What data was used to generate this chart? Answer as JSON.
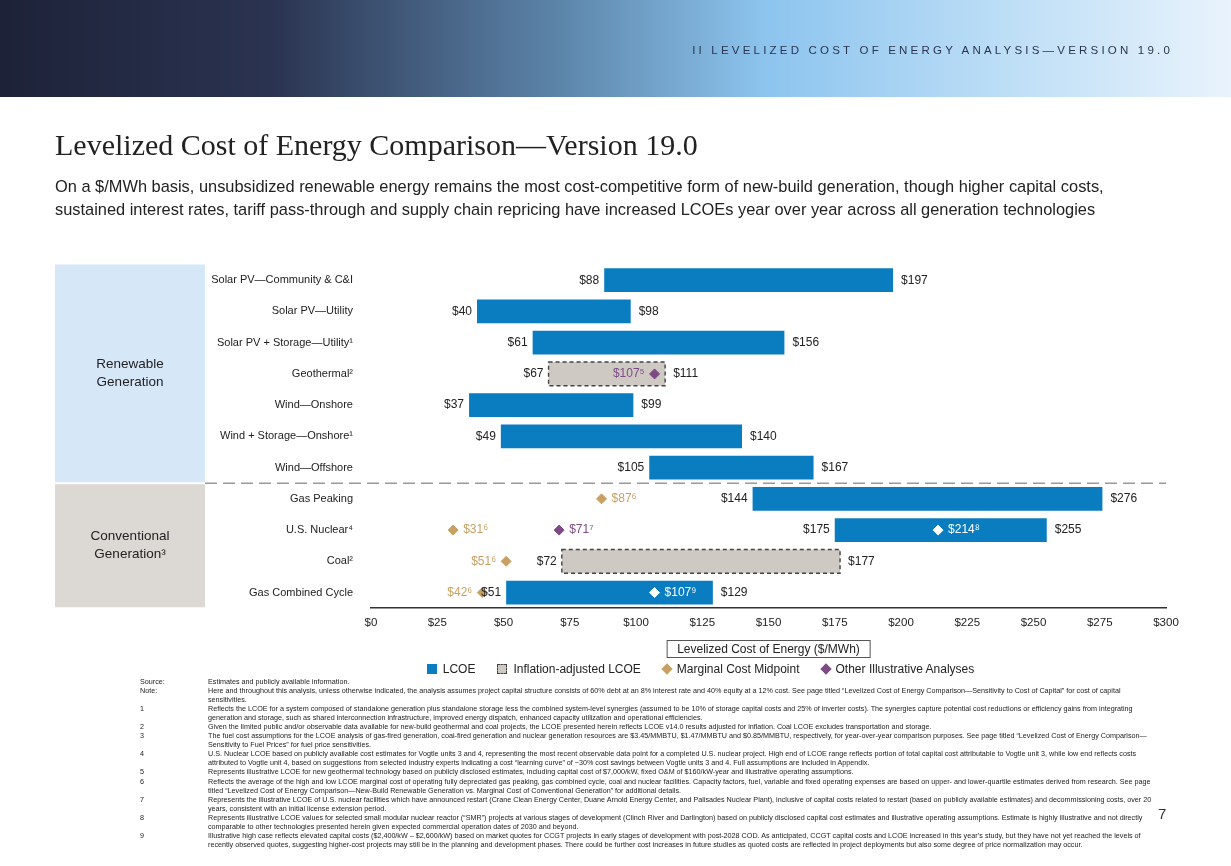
{
  "chart_data": {
    "type": "bar",
    "orientation": "horizontal",
    "title": "Levelized Cost of Energy Comparison—Version 19.0",
    "subtitle": "On a $/MWh basis, unsubsidized renewable energy remains the most cost-competitive form of new-build generation, though higher capital costs, sustained interest rates, tariff pass-through and supply chain repricing have increased LCOEs year over year across all generation technologies",
    "xlabel": "Levelized Cost of Energy ($/MWh)",
    "categories": [
      "Solar PV—Community & C&I",
      "Solar PV—Utility",
      "Solar PV + Storage—Utility¹",
      "Geothermal²",
      "Wind—Onshore",
      "Wind + Storage—Onshore¹",
      "Wind—Offshore",
      "Gas Peaking",
      "U.S. Nuclear⁴",
      "Coal²",
      "Gas Combined Cycle"
    ],
    "series": [
      {
        "name": "LCOE",
        "type": "bar",
        "color": "#0a7dc1",
        "base": [
          88,
          40,
          61,
          null,
          37,
          49,
          105,
          144,
          175,
          null,
          51
        ],
        "values": [
          109,
          58,
          95,
          null,
          62,
          91,
          62,
          132,
          80,
          null,
          78
        ],
        "value_labels": [
          [
            "$88",
            "$197"
          ],
          [
            "$40",
            "$98"
          ],
          [
            "$61",
            "$156"
          ],
          null,
          [
            "$37",
            "$99"
          ],
          [
            "$49",
            "$140"
          ],
          [
            "$105",
            "$167"
          ],
          [
            "$144",
            "$276"
          ],
          [
            "$175",
            "$255"
          ],
          null,
          [
            "$51",
            "$129"
          ]
        ]
      },
      {
        "name": "Inflation-adjusted LCOE",
        "type": "bar",
        "color": "#cfc9c4",
        "line_style": "dashed",
        "base": [
          null,
          null,
          null,
          67,
          null,
          null,
          null,
          null,
          null,
          72,
          null
        ],
        "values": [
          null,
          null,
          null,
          44,
          null,
          null,
          null,
          null,
          null,
          105,
          null
        ],
        "value_labels": [
          null,
          null,
          null,
          [
            "$67",
            "$111"
          ],
          null,
          null,
          null,
          null,
          null,
          [
            "$72",
            "$177"
          ],
          null
        ]
      },
      {
        "name": "Marginal Cost Midpoint",
        "type": "scatter",
        "marker": "diamond",
        "color": "#c9a063",
        "values": [
          null,
          null,
          null,
          null,
          null,
          null,
          null,
          87,
          31,
          51,
          42
        ],
        "value_labels": [
          null,
          null,
          null,
          null,
          null,
          null,
          null,
          "$87⁶",
          "$31⁶",
          "$51⁶",
          "$42⁶"
        ]
      },
      {
        "name": "Other Illustrative Analyses",
        "type": "scatter",
        "marker": "diamond",
        "color": "#7d4a85",
        "x": [
          "Geothermal²",
          "U.S. Nuclear⁴",
          "U.S. Nuclear⁴",
          "Gas Combined Cycle"
        ],
        "values": [
          107,
          71,
          214,
          107
        ],
        "colors": [
          "#7d4a85",
          "#7d4a85",
          "#ffffff",
          "#ffffff"
        ],
        "value_labels": [
          "$107⁵",
          "$71⁷",
          "$214⁸",
          "$107⁹"
        ]
      }
    ],
    "xlim": [
      0,
      300
    ],
    "xticks": [
      {
        "value": 0,
        "label": "$0"
      },
      {
        "value": 25,
        "label": "$25"
      },
      {
        "value": 50,
        "label": "$50"
      },
      {
        "value": 75,
        "label": "$75"
      },
      {
        "value": 100,
        "label": "$100"
      },
      {
        "value": 125,
        "label": "$125"
      },
      {
        "value": 150,
        "label": "$150"
      },
      {
        "value": 175,
        "label": "$175"
      },
      {
        "value": 200,
        "label": "$200"
      },
      {
        "value": 225,
        "label": "$225"
      },
      {
        "value": 250,
        "label": "$250"
      },
      {
        "value": 275,
        "label": "$275"
      },
      {
        "value": 300,
        "label": "$300"
      }
    ],
    "legend": "bottom",
    "annotations": [
      "II   LEVELIZED COST OF ENERGY ANALYSIS—VERSION 19.0",
      "7",
      "Renewable Generation",
      "Conventional Generation³",
      "Source:\tEstimates and publicly available information.",
      "Note:\tHere and throughout this analysis, unless otherwise indicated, the analysis assumes project capital structure consists of 60% debt at an 8% interest rate and 40% equity at a 12% cost. See page titled “Levelized Cost of Energy Comparison—Sensitivity to Cost of Capital” for cost of capital sensitivities.",
      "1\tReflects the LCOE for a system composed of standalone generation plus standalone storage less the combined system-level synergies (assumed to be 10% of storage capital costs and 25% of inverter costs). The synergies capture potential cost reductions or efficiency gains from integrating generation and storage, such as shared interconnection infrastructure, improved energy dispatch, enhanced capacity utilization and operational efficiencies.",
      "2\tGiven the limited public and/or observable data available for new-build geothermal and coal projects, the LCOE presented herein reflects LCOE v14.0 results adjusted for inflation. Coal LCOE excludes transportation and storage.",
      "3\tThe fuel cost assumptions for the LCOE analysis of gas-fired generation, coal-fired generation and nuclear generation resources are $3.45/MMBTU, $1.47/MMBTU and $0.85/MMBTU, respectively, for year-over-year comparison purposes. See page titled “Levelized Cost of Energy Comparison—Sensitivity to Fuel Prices” for fuel price sensitivities.",
      "4\tU.S. Nuclear LCOE based on publicly available cost estimates for Vogtle units 3 and 4, representing the most recent observable data point for a completed U.S. nuclear project. High end of LCOE range reflects portion of total capital cost attributable to Vogtle unit 3, while low end reflects costs attributed to Vogtle unit 4, based on suggestions from selected industry experts indicating a cost “learning curve” of ~30% cost savings between Vogtle units 3 and 4. Full assumptions are included in Appendix.",
      "5\tRepresents illustrative LCOE for new geothermal technology based on publicly disclosed estimates, including capital cost of $7,000/kW, fixed O&M of $160/kW-year and illustrative operating assumptions.",
      "6\tReflects the average of the high and low LCOE marginal cost of operating fully depreciated gas peaking, gas combined cycle, coal and nuclear facilities. Capacity factors, fuel, variable and fixed operating expenses are based on upper- and lower-quartile estimates derived from research. See page titled “Levelized Cost of Energy Comparison—New-Build Renewable Generation vs. Marginal Cost of Conventional Generation” for additional details.",
      "7\tRepresents the illustrative LCOE of U.S. nuclear facilities which have announced restart (Crane Clean Energy Center, Duane Arnold Energy Center, and Palisades Nuclear Plant), inclusive of capital costs related to restart (based on publicly available estimates) and decommissioning costs, over 20 years, consistent with an initial license extension period.",
      "8\tRepresents illustrative LCOE values for selected small modular nuclear reactor (“SMR”) projects at various stages of development (Clinch River and Darlington) based on publicly disclosed capital cost estimates and illustrative operating assumptions. Estimate is highly illustrative and not directly comparable to other technologies presented herein given expected commercial operation dates of 2030 and beyond.",
      "9\tIllustrative high case reflects elevated capital costs ($2,400/kW – $2,600/kW) based on market quotes for CCGT projects in early stages of development with post-2028 COD. As anticipated, CCGT capital costs and LCOE increased in this year’s study, but they have not yet reached the levels of recently observed quotes, suggesting higher-cost projects may still be in the planning and development phases. There could be further cost increases in future studies as quoted costs are reflected in project deployments but also some degree of price normalization may occur."
    ]
  }
}
